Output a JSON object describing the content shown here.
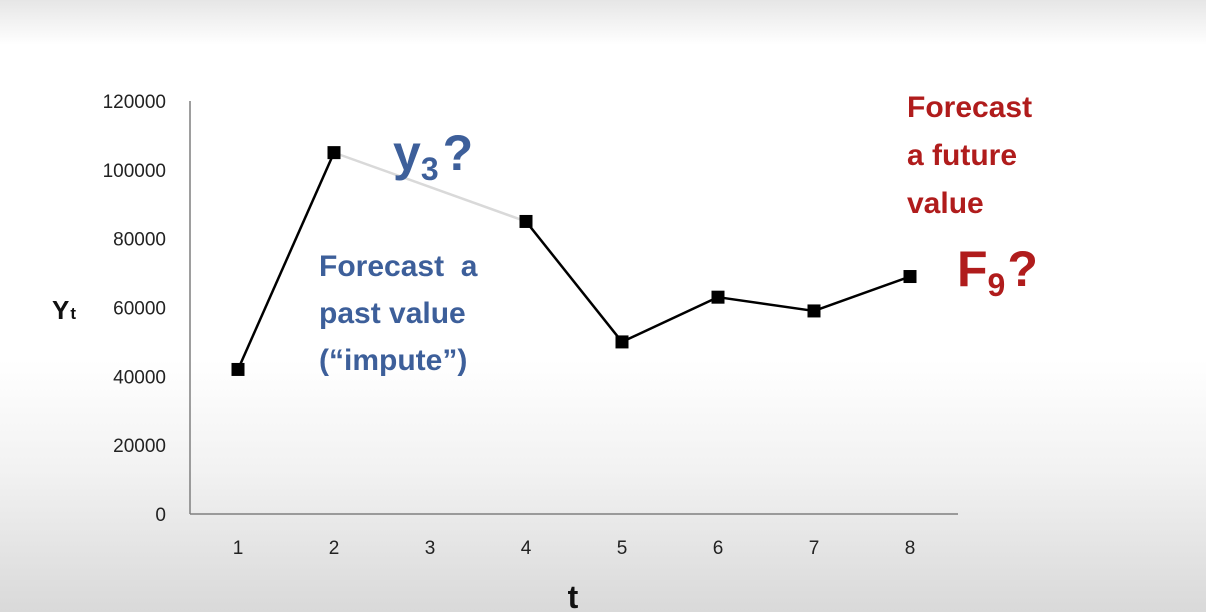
{
  "chart_data": {
    "type": "line",
    "title": "",
    "xlabel": "t",
    "ylabel_main": "Y",
    "ylabel_sub": "t",
    "categories": [
      "1",
      "2",
      "3",
      "4",
      "5",
      "6",
      "7",
      "8"
    ],
    "x": [
      1,
      2,
      3,
      4,
      5,
      6,
      7,
      8
    ],
    "y": [
      42000,
      105000,
      null,
      85000,
      50000,
      63000,
      59000,
      69000
    ],
    "imputed_segment": {
      "from_x": 2,
      "to_x": 4,
      "style": "light-gray"
    },
    "ylim": [
      0,
      120000
    ],
    "yticks": [
      "0",
      "20000",
      "40000",
      "60000",
      "80000",
      "100000",
      "120000"
    ],
    "grid": false,
    "series_color": "#000000",
    "marker": "square"
  },
  "annotations": {
    "impute_symbol_main": "y",
    "impute_symbol_sub": "3",
    "impute_symbol_q": "?",
    "impute_text": [
      "Forecast  a",
      "past value",
      "(“impute”)"
    ],
    "future_text": [
      "Forecast",
      "a future",
      "value"
    ],
    "future_symbol_main": "F",
    "future_symbol_sub": "9",
    "future_symbol_q": "?"
  },
  "colors": {
    "impute": "#3d5f9a",
    "future": "#b01c1c",
    "axis": "#7f7f7f",
    "imputed_line": "#d9d9d9"
  }
}
